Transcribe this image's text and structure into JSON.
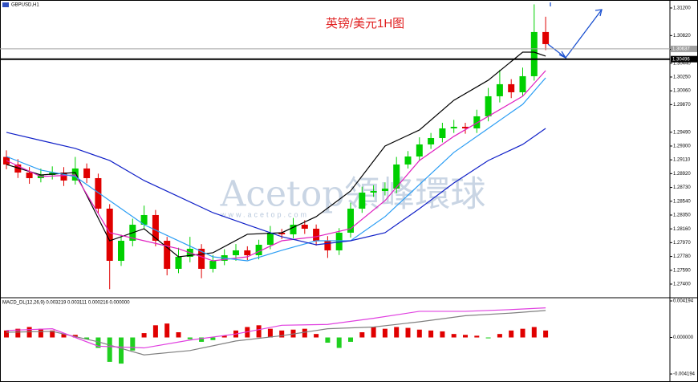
{
  "chart_data": [
    {
      "type": "candlestick",
      "title": "英镑/美元1H图",
      "symbol": "GBPUSD,H1",
      "watermark": "Acetop領峰環球",
      "watermark_url": "www.acetop.com",
      "open": [
        1.2915,
        1.29046,
        1.28935,
        1.28858,
        1.28902,
        1.28935,
        1.28825,
        1.28991,
        1.28858,
        1.28438,
        1.2772,
        1.27996,
        1.28217,
        1.2835,
        1.27996,
        1.2761,
        1.27775,
        1.27886,
        1.2761,
        1.2772,
        1.27797,
        1.27864,
        1.27797,
        1.27941,
        1.28107,
        1.28085,
        1.28217,
        1.28162,
        1.27996,
        1.27864,
        1.28107,
        1.28438,
        1.28659,
        1.28681,
        1.28714,
        1.29046,
        1.29156,
        1.29322,
        1.2941,
        1.29543,
        1.29565,
        1.29543,
        1.29709,
        1.29985,
        1.30151,
        1.3004,
        1.30261,
        1.30869
      ],
      "high": [
        1.2924,
        1.2912,
        1.2901,
        1.2899,
        1.2902,
        1.2901,
        1.2915,
        1.2906,
        1.2892,
        1.285,
        1.2808,
        1.283,
        1.2848,
        1.2842,
        1.2805,
        1.279,
        1.2805,
        1.2795,
        1.278,
        1.2788,
        1.2795,
        1.2792,
        1.2801,
        1.282,
        1.2816,
        1.2831,
        1.2828,
        1.2822,
        1.2806,
        1.2817,
        1.2852,
        1.2874,
        1.2876,
        1.288,
        1.2915,
        1.2923,
        1.2942,
        1.2948,
        1.2962,
        1.2966,
        1.2962,
        1.298,
        1.301,
        1.3035,
        1.3022,
        1.3038,
        1.3125,
        1.3108
      ],
      "low": [
        1.2898,
        1.2886,
        1.2878,
        1.288,
        1.2884,
        1.2875,
        1.2877,
        1.2879,
        1.2837,
        1.2733,
        1.2765,
        1.2792,
        1.2815,
        1.2792,
        1.2752,
        1.2755,
        1.277,
        1.2748,
        1.2756,
        1.2766,
        1.2772,
        1.2773,
        1.2774,
        1.2788,
        1.2802,
        1.2803,
        1.2809,
        1.2793,
        1.2776,
        1.278,
        1.2804,
        1.2838,
        1.286,
        1.2862,
        1.2865,
        1.2899,
        1.291,
        1.2926,
        1.2935,
        1.2948,
        1.2947,
        1.2948,
        1.2964,
        1.299,
        1.2996,
        1.2998,
        1.302,
        1.3062
      ],
      "close": [
        1.29046,
        1.28935,
        1.28858,
        1.28902,
        1.28935,
        1.28825,
        1.28991,
        1.28858,
        1.28438,
        1.2772,
        1.27996,
        1.28217,
        1.2835,
        1.27996,
        1.2761,
        1.27775,
        1.27886,
        1.2761,
        1.2772,
        1.27797,
        1.27864,
        1.27797,
        1.27941,
        1.28107,
        1.28085,
        1.28217,
        1.28162,
        1.27996,
        1.27864,
        1.28107,
        1.28438,
        1.28659,
        1.28681,
        1.28714,
        1.29046,
        1.29156,
        1.29322,
        1.2941,
        1.29543,
        1.29565,
        1.29543,
        1.29709,
        1.29985,
        1.30151,
        1.3004,
        1.30261,
        1.30869,
        1.30703
      ],
      "up_color": "#00d000",
      "down_color": "#e00000",
      "series": [
        {
          "color": "#000000",
          "x": [
            0,
            3,
            6,
            9,
            12,
            15,
            18,
            21,
            24,
            27,
            30,
            33,
            36,
            39,
            42,
            45,
            46,
            47
          ],
          "values": [
            1.29046,
            1.28902,
            1.28935,
            1.27996,
            1.28162,
            1.27775,
            1.27831,
            1.28085,
            1.28107,
            1.28328,
            1.28681,
            1.293,
            1.29521,
            1.2993,
            1.30206,
            1.30592,
            1.30592,
            1.30537
          ]
        },
        {
          "color": "#e020c0",
          "x": [
            0,
            3,
            6,
            9,
            12,
            15,
            18,
            21,
            24,
            27,
            30,
            33,
            36,
            39,
            42,
            45,
            47
          ],
          "values": [
            1.29101,
            1.2888,
            1.28902,
            1.28107,
            1.27996,
            1.27886,
            1.2772,
            1.27775,
            1.27996,
            1.28052,
            1.28162,
            1.28549,
            1.29101,
            1.29433,
            1.29709,
            1.29985,
            1.30338
          ]
        },
        {
          "color": "#2a9df4",
          "x": [
            0,
            3,
            6,
            9,
            12,
            15,
            18,
            21,
            24,
            27,
            30,
            33,
            36,
            39,
            42,
            45,
            47
          ],
          "values": [
            1.29156,
            1.28969,
            1.2888,
            1.28549,
            1.28217,
            1.27996,
            1.27775,
            1.2772,
            1.27864,
            1.27996,
            1.27996,
            1.28328,
            1.2877,
            1.29212,
            1.29543,
            1.29874,
            1.30239
          ]
        },
        {
          "color": "#1020c8",
          "x": [
            0,
            3,
            6,
            9,
            12,
            15,
            18,
            21,
            24,
            27,
            30,
            33,
            36,
            39,
            42,
            45,
            47
          ],
          "values": [
            1.29488,
            1.29377,
            1.29267,
            1.29101,
            1.28825,
            1.28604,
            1.28383,
            1.28217,
            1.28052,
            1.27941,
            1.27996,
            1.28107,
            1.28438,
            1.28792,
            1.29101,
            1.29322,
            1.29543
          ]
        }
      ],
      "levels": [
        {
          "value": 1.30637,
          "color": "#a0a0a0"
        },
        {
          "value": 1.30496,
          "color": "#000000"
        }
      ],
      "ylim": [
        1.27223,
        1.3131
      ],
      "yticks": [
        {
          "value": 1.312,
          "label": "1.31200"
        },
        {
          "value": 1.3082,
          "label": "1.30820"
        },
        {
          "value": 1.3063,
          "label": "1.30630"
        },
        {
          "value": 1.3044,
          "label": "1.30440"
        },
        {
          "value": 1.3025,
          "label": "1.30250"
        },
        {
          "value": 1.3006,
          "label": "1.30060"
        },
        {
          "value": 1.2987,
          "label": "1.29870"
        },
        {
          "value": 1.2949,
          "label": "1.29490"
        },
        {
          "value": 1.293,
          "label": "1.29300"
        },
        {
          "value": 1.2911,
          "label": "1.29110"
        },
        {
          "value": 1.2892,
          "label": "1.28920"
        },
        {
          "value": 1.2873,
          "label": "1.28730"
        },
        {
          "value": 1.2854,
          "label": "1.28540"
        },
        {
          "value": 1.2835,
          "label": "1.28350"
        },
        {
          "value": 1.2816,
          "label": "1.28160"
        },
        {
          "value": 1.2797,
          "label": "1.27970"
        },
        {
          "value": 1.2778,
          "label": "1.27780"
        },
        {
          "value": 1.2759,
          "label": "1.27590"
        },
        {
          "value": 1.274,
          "label": "1.27400"
        }
      ]
    },
    {
      "type": "macd",
      "label": "MACD_DL(12,26,9) 0.003219 0.003111 0.000216 0.000000",
      "values": [
        0.0008,
        0.001,
        0.0012,
        0.001,
        0.0008,
        0.0004,
        0.0003,
        -0.0002,
        -0.0012,
        -0.0028,
        -0.003,
        -0.0015,
        0.0005,
        0.0014,
        0.0016,
        0.0006,
        -0.0002,
        -0.0005,
        -0.0003,
        0.0002,
        0.0008,
        0.0012,
        0.0014,
        0.001,
        0.0008,
        0.0009,
        0.001,
        0.0004,
        -0.0006,
        -0.0012,
        -0.0005,
        0.0006,
        0.0012,
        0.001,
        0.0012,
        0.0011,
        0.0009,
        0.0008,
        0.0007,
        0.0004,
        0.0003,
        0.0002,
        -0.0001,
        0.0004,
        0.0008,
        0.001,
        0.0012,
        0.0008
      ],
      "pos_color": "#e00000",
      "neg_color": "#20d020",
      "series": [
        {
          "color": "#808080",
          "x": [
            0,
            4,
            8,
            12,
            16,
            20,
            24,
            28,
            32,
            36,
            40,
            44,
            47
          ],
          "values": [
            0.0006,
            0.0007,
            -0.0005,
            -0.002,
            -0.0015,
            -0.0004,
            0.0002,
            0.001,
            0.0012,
            0.0018,
            0.0025,
            0.0028,
            0.0031
          ]
        },
        {
          "color": "#e040e0",
          "x": [
            0,
            4,
            8,
            12,
            16,
            20,
            24,
            28,
            32,
            36,
            40,
            44,
            47
          ],
          "values": [
            0.0008,
            0.001,
            -0.001,
            -0.0012,
            -0.0003,
            0.0004,
            0.0014,
            0.0015,
            0.0022,
            0.003,
            0.003,
            0.0032,
            0.0034
          ]
        }
      ],
      "ylim": [
        -0.00456,
        0.00447
      ],
      "yticks": [
        0.004194,
        {
          "value": 0,
          "label": "0.000000"
        },
        -0.004194
      ]
    }
  ]
}
